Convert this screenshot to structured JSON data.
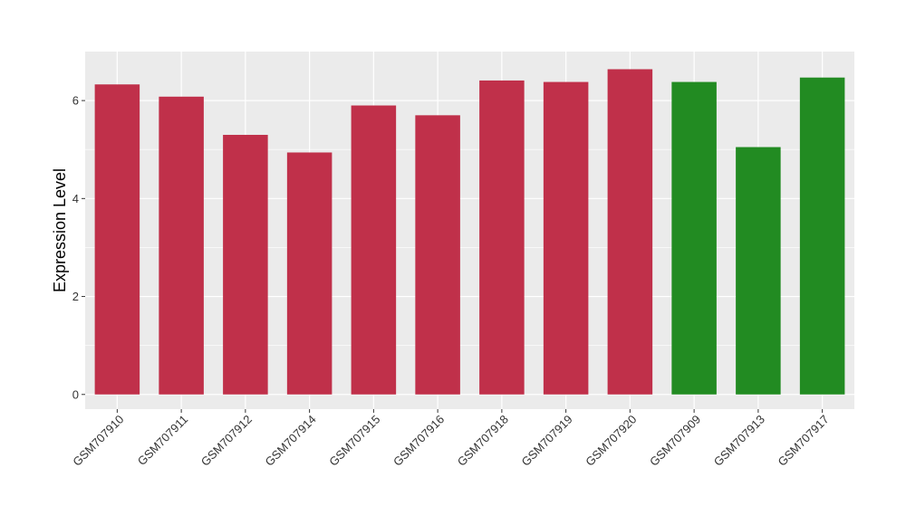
{
  "chart_data": {
    "type": "bar",
    "title": "",
    "xlabel": "",
    "ylabel": "Expression Level",
    "ylim": [
      -0.3,
      7.0
    ],
    "yticks": [
      0,
      2,
      4,
      6
    ],
    "grid": true,
    "legend": "none",
    "panel_background": "#ebebeb",
    "grid_color": "#ffffff",
    "categories": [
      "GSM707910",
      "GSM707911",
      "GSM707912",
      "GSM707914",
      "GSM707915",
      "GSM707916",
      "GSM707918",
      "GSM707919",
      "GSM707920",
      "GSM707909",
      "GSM707913",
      "GSM707917"
    ],
    "values": [
      6.33,
      6.08,
      5.3,
      4.94,
      5.9,
      5.7,
      6.41,
      6.38,
      6.64,
      6.38,
      5.05,
      6.47
    ],
    "colors": [
      "#c0304a",
      "#c0304a",
      "#c0304a",
      "#c0304a",
      "#c0304a",
      "#c0304a",
      "#c0304a",
      "#c0304a",
      "#c0304a",
      "#228b22",
      "#228b22",
      "#228b22"
    ]
  }
}
